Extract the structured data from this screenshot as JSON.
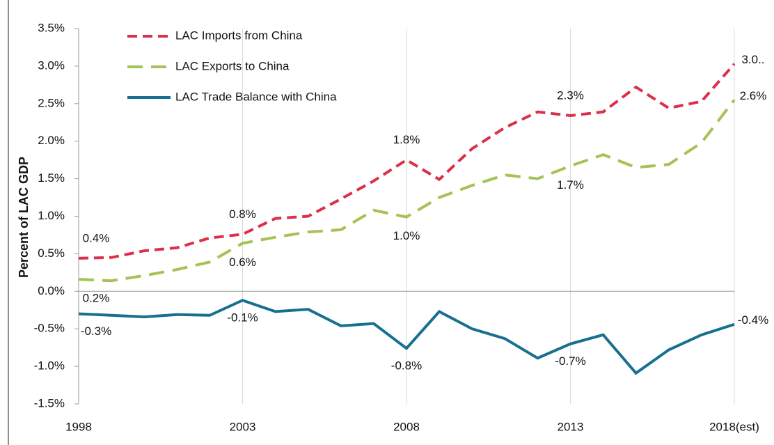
{
  "chart_data": {
    "type": "line",
    "y_label": "Percent of LAC GDP",
    "categories": [
      "1998",
      null,
      null,
      null,
      null,
      "2003",
      null,
      null,
      null,
      null,
      "2008",
      null,
      null,
      null,
      null,
      "2013",
      null,
      null,
      null,
      null,
      "2018(est)"
    ],
    "series": [
      {
        "name": "LAC Imports from China",
        "color": "#dc2f4a",
        "style": "dashed",
        "values": [
          0.44,
          0.45,
          0.54,
          0.58,
          0.71,
          0.76,
          0.97,
          1.0,
          1.23,
          1.47,
          1.75,
          1.49,
          1.9,
          2.18,
          2.39,
          2.34,
          2.39,
          2.72,
          2.44,
          2.53,
          3.03
        ],
        "value_labels": [
          "0.4%",
          null,
          null,
          null,
          null,
          "0.8%",
          null,
          null,
          null,
          null,
          "1.8%",
          null,
          null,
          null,
          null,
          "2.3%",
          null,
          null,
          null,
          null,
          "3.0.."
        ]
      },
      {
        "name": "LAC Exports to China",
        "color": "#a5c255",
        "style": "long-dashed",
        "values": [
          0.16,
          0.14,
          0.21,
          0.29,
          0.39,
          0.64,
          0.72,
          0.79,
          0.82,
          1.08,
          0.99,
          1.25,
          1.41,
          1.55,
          1.5,
          1.67,
          1.82,
          1.65,
          1.69,
          1.98,
          2.55
        ],
        "value_labels": [
          "0.2%",
          null,
          null,
          null,
          null,
          "0.6%",
          null,
          null,
          null,
          null,
          "1.0%",
          null,
          null,
          null,
          null,
          "1.7%",
          null,
          null,
          null,
          null,
          "2.6%"
        ]
      },
      {
        "name": "LAC Trade Balance with China",
        "color": "#17708f",
        "style": "solid",
        "values": [
          -0.3,
          -0.32,
          -0.34,
          -0.31,
          -0.32,
          -0.12,
          -0.27,
          -0.24,
          -0.46,
          -0.43,
          -0.76,
          -0.27,
          -0.5,
          -0.63,
          -0.89,
          -0.7,
          -0.58,
          -1.09,
          -0.78,
          -0.58,
          -0.44
        ],
        "value_labels": [
          "-0.3%",
          null,
          null,
          null,
          null,
          "-0.1%",
          null,
          null,
          null,
          null,
          "-0.8%",
          null,
          null,
          null,
          null,
          "-0.7%",
          null,
          null,
          null,
          null,
          "-0.4%"
        ]
      }
    ],
    "ylim": [
      -1.5,
      3.5
    ],
    "yticks": [
      {
        "value": -1.5,
        "label": "-1.5%"
      },
      {
        "value": -1.0,
        "label": "-1.0%"
      },
      {
        "value": -0.5,
        "label": "-0.5%"
      },
      {
        "value": 0,
        "label": "0.0%"
      },
      {
        "value": 0.5,
        "label": "0.5%"
      },
      {
        "value": 1.0,
        "label": "1.0%"
      },
      {
        "value": 1.5,
        "label": "1.5%"
      },
      {
        "value": 2.0,
        "label": "2.0%"
      },
      {
        "value": 2.5,
        "label": "2.5%"
      },
      {
        "value": 3.0,
        "label": "3.0%"
      },
      {
        "value": 3.5,
        "label": "3.5%"
      }
    ],
    "grid": true,
    "legend": "upper-left"
  }
}
